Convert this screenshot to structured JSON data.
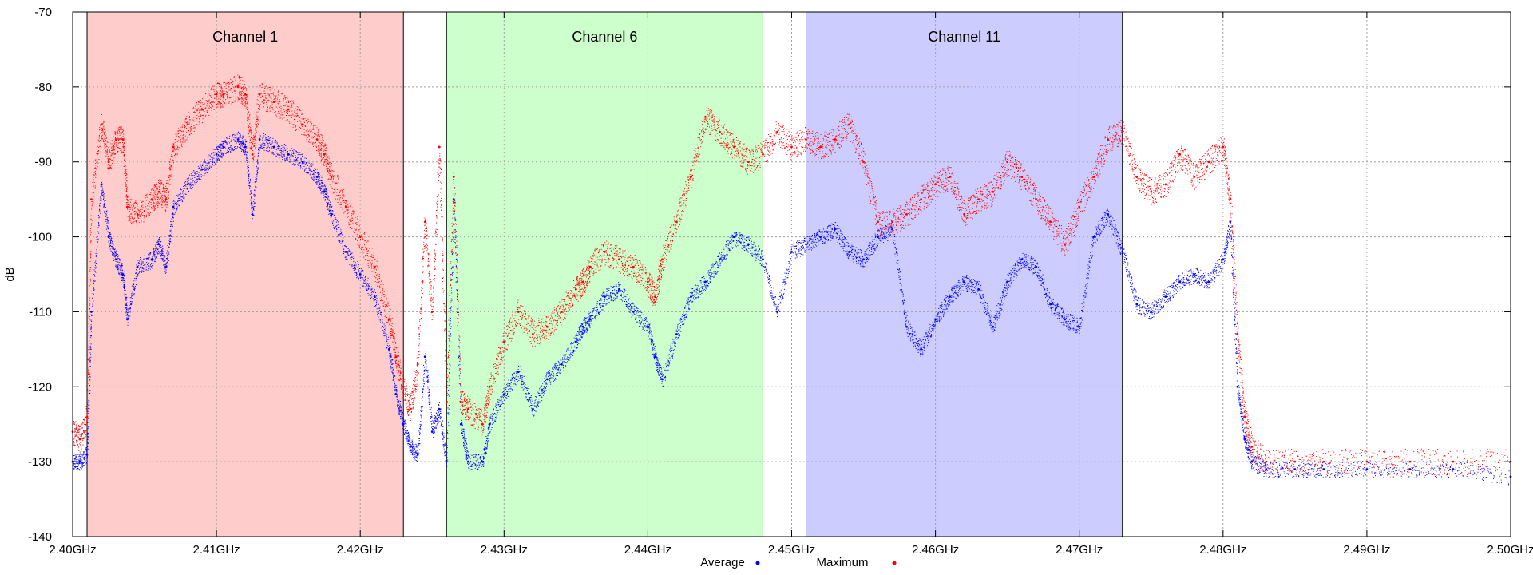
{
  "chart_data": {
    "type": "scatter",
    "xlabel": "",
    "ylabel": "dB",
    "xlim": [
      2.4,
      2.5
    ],
    "ylim": [
      -140,
      -70
    ],
    "x_ticks": [
      {
        "value": 2.4,
        "label": "2.40GHz"
      },
      {
        "value": 2.41,
        "label": "2.41GHz"
      },
      {
        "value": 2.42,
        "label": "2.42GHz"
      },
      {
        "value": 2.43,
        "label": "2.43GHz"
      },
      {
        "value": 2.44,
        "label": "2.44GHz"
      },
      {
        "value": 2.45,
        "label": "2.45GHz"
      },
      {
        "value": 2.46,
        "label": "2.46GHz"
      },
      {
        "value": 2.47,
        "label": "2.47GHz"
      },
      {
        "value": 2.48,
        "label": "2.48GHz"
      },
      {
        "value": 2.49,
        "label": "2.49GHz"
      },
      {
        "value": 2.5,
        "label": "2.50GHz"
      }
    ],
    "y_ticks": [
      {
        "value": -70,
        "label": "-70"
      },
      {
        "value": -80,
        "label": "-80"
      },
      {
        "value": -90,
        "label": "-90"
      },
      {
        "value": -100,
        "label": "-100"
      },
      {
        "value": -110,
        "label": "-110"
      },
      {
        "value": -120,
        "label": "-120"
      },
      {
        "value": -130,
        "label": "-130"
      },
      {
        "value": -140,
        "label": "-140"
      }
    ],
    "grid": true,
    "legend_position": "bottom-center",
    "bands": [
      {
        "label": "Channel 1",
        "x0": 2.401,
        "x1": 2.423,
        "color": "#ffcccc"
      },
      {
        "label": "Channel 6",
        "x0": 2.426,
        "x1": 2.448,
        "color": "#ccffcc"
      },
      {
        "label": "Channel 11",
        "x0": 2.451,
        "x1": 2.473,
        "color": "#ccccff"
      }
    ],
    "series": [
      {
        "name": "Average",
        "color": "#0000ff",
        "x": [
          2.4,
          2.4005,
          2.401,
          2.4013,
          2.402,
          2.4025,
          2.403,
          2.4035,
          2.4038,
          2.4045,
          2.4055,
          2.406,
          2.4065,
          2.407,
          2.408,
          2.409,
          2.41,
          2.4105,
          2.4115,
          2.412,
          2.4125,
          2.413,
          2.414,
          2.415,
          2.416,
          2.417,
          2.4175,
          2.418,
          2.419,
          2.42,
          2.421,
          2.422,
          2.4225,
          2.423,
          2.4235,
          2.424,
          2.4245,
          2.425,
          2.4255,
          2.426,
          2.4265,
          2.427,
          2.4275,
          2.4285,
          2.429,
          2.43,
          2.431,
          2.432,
          2.433,
          2.434,
          2.435,
          2.4355,
          2.436,
          2.437,
          2.438,
          2.439,
          2.44,
          2.4405,
          2.441,
          2.442,
          2.443,
          2.444,
          2.445,
          2.446,
          2.447,
          2.448,
          2.449,
          2.45,
          2.451,
          2.452,
          2.453,
          2.454,
          2.455,
          2.456,
          2.457,
          2.458,
          2.459,
          2.46,
          2.461,
          2.462,
          2.463,
          2.464,
          2.465,
          2.466,
          2.467,
          2.468,
          2.469,
          2.47,
          2.471,
          2.472,
          2.473,
          2.474,
          2.475,
          2.476,
          2.477,
          2.478,
          2.479,
          2.48,
          2.4805,
          2.481,
          2.4815,
          2.482,
          2.483,
          2.485,
          2.487,
          2.49,
          2.493,
          2.496,
          2.5
        ],
        "y": [
          -130,
          -130,
          -129,
          -110,
          -93,
          -100,
          -103,
          -105,
          -111,
          -104,
          -103,
          -101,
          -104,
          -96,
          -93,
          -91,
          -89,
          -88,
          -87,
          -88,
          -97,
          -87,
          -88,
          -89,
          -90,
          -92,
          -94,
          -97,
          -102,
          -105,
          -108,
          -115,
          -121,
          -125,
          -128,
          -129,
          -116,
          -126,
          -123,
          -130,
          -95,
          -125,
          -130,
          -130,
          -125,
          -121,
          -118,
          -123,
          -119,
          -117,
          -114,
          -112,
          -111,
          -108,
          -107,
          -110,
          -112,
          -116,
          -119,
          -113,
          -108,
          -106,
          -103,
          -100,
          -101,
          -103,
          -110,
          -102,
          -101,
          -100,
          -99,
          -102,
          -103,
          -100,
          -99,
          -112,
          -115,
          -111,
          -108,
          -106,
          -107,
          -112,
          -106,
          -103,
          -104,
          -109,
          -111,
          -112,
          -100,
          -97,
          -102,
          -109,
          -110,
          -108,
          -106,
          -105,
          -106,
          -103,
          -98,
          -120,
          -127,
          -130,
          -131,
          -131,
          -131,
          -131,
          -131,
          -131,
          -132
        ]
      },
      {
        "name": "Maximum",
        "color": "#ff0000",
        "x": [
          2.4,
          2.4005,
          2.401,
          2.4013,
          2.402,
          2.4025,
          2.403,
          2.4035,
          2.4038,
          2.4045,
          2.4055,
          2.406,
          2.4065,
          2.407,
          2.408,
          2.409,
          2.41,
          2.4105,
          2.4115,
          2.412,
          2.4125,
          2.413,
          2.414,
          2.415,
          2.416,
          2.417,
          2.4175,
          2.418,
          2.419,
          2.42,
          2.421,
          2.422,
          2.4225,
          2.423,
          2.4235,
          2.424,
          2.4245,
          2.425,
          2.4255,
          2.426,
          2.4265,
          2.427,
          2.4275,
          2.4285,
          2.429,
          2.43,
          2.431,
          2.432,
          2.433,
          2.434,
          2.435,
          2.4355,
          2.436,
          2.437,
          2.438,
          2.439,
          2.44,
          2.4405,
          2.441,
          2.442,
          2.443,
          2.444,
          2.445,
          2.446,
          2.447,
          2.448,
          2.449,
          2.45,
          2.451,
          2.452,
          2.453,
          2.454,
          2.455,
          2.456,
          2.457,
          2.458,
          2.459,
          2.46,
          2.461,
          2.462,
          2.463,
          2.464,
          2.465,
          2.466,
          2.467,
          2.468,
          2.469,
          2.47,
          2.471,
          2.472,
          2.473,
          2.474,
          2.475,
          2.476,
          2.477,
          2.478,
          2.479,
          2.48,
          2.4805,
          2.481,
          2.4815,
          2.482,
          2.483,
          2.485,
          2.487,
          2.49,
          2.493,
          2.496,
          2.5
        ],
        "y": [
          -126,
          -127,
          -124,
          -95,
          -85,
          -90,
          -87,
          -87,
          -96,
          -97,
          -95,
          -94,
          -95,
          -88,
          -85,
          -83,
          -81,
          -81,
          -80,
          -81,
          -89,
          -81,
          -82,
          -83,
          -85,
          -87,
          -89,
          -92,
          -96,
          -100,
          -104,
          -111,
          -116,
          -120,
          -123,
          -117,
          -98,
          -110,
          -88,
          -122,
          -92,
          -122,
          -123,
          -125,
          -120,
          -114,
          -110,
          -113,
          -112,
          -110,
          -107,
          -106,
          -104,
          -102,
          -103,
          -104,
          -106,
          -108,
          -103,
          -98,
          -92,
          -84,
          -86,
          -88,
          -90,
          -89,
          -86,
          -88,
          -87,
          -88,
          -87,
          -85,
          -90,
          -98,
          -98,
          -97,
          -95,
          -93,
          -92,
          -97,
          -95,
          -94,
          -90,
          -92,
          -95,
          -98,
          -101,
          -96,
          -92,
          -87,
          -86,
          -92,
          -94,
          -93,
          -89,
          -92,
          -90,
          -88,
          -95,
          -113,
          -124,
          -128,
          -130,
          -130,
          -130,
          -130,
          -130,
          -130,
          -130
        ]
      }
    ]
  }
}
